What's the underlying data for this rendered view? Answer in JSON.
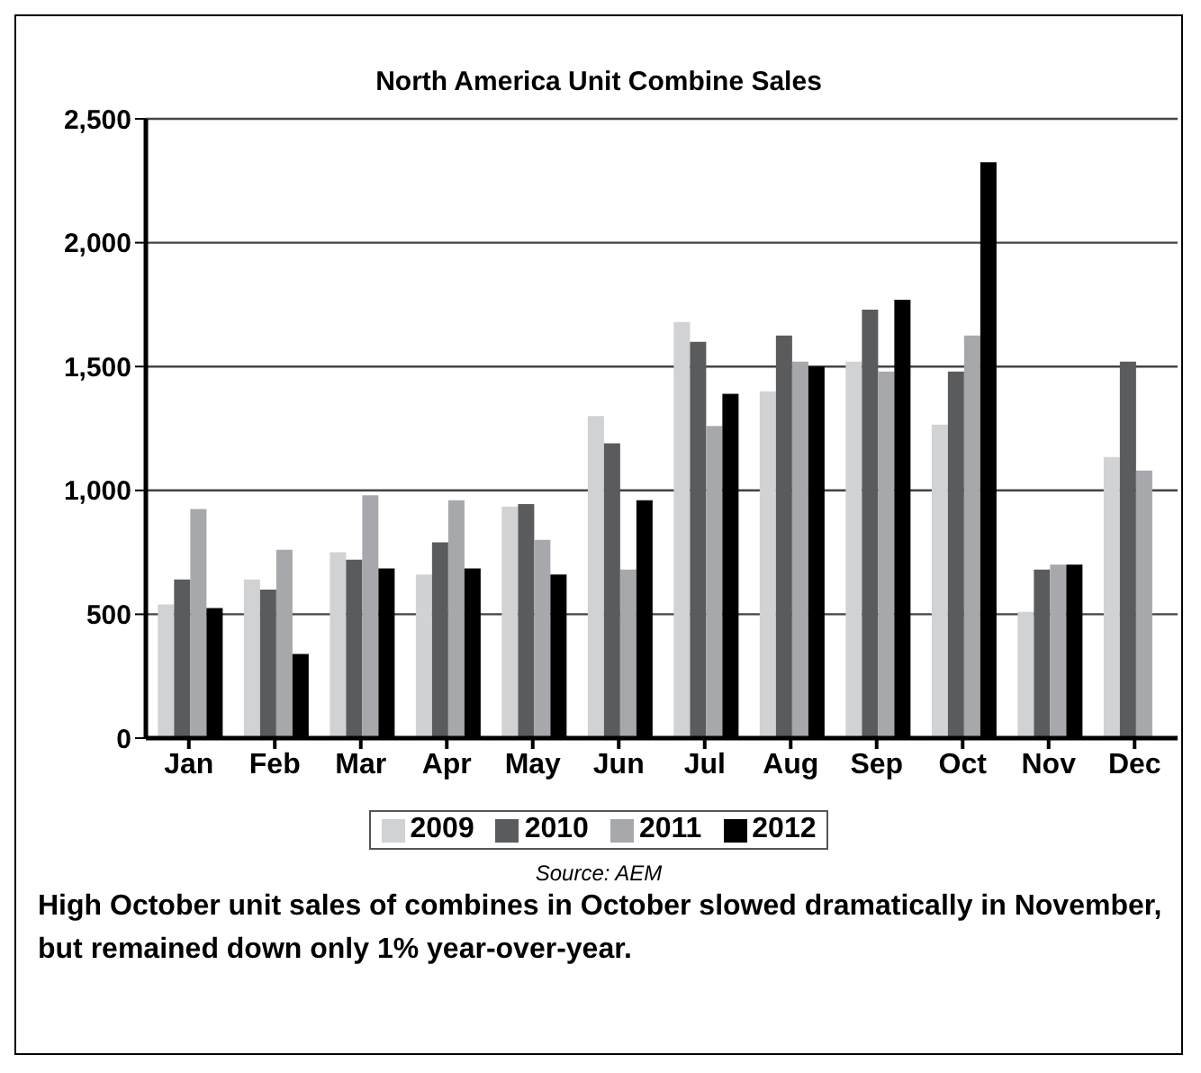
{
  "chart_data": {
    "type": "bar",
    "title": "North America Unit Combine Sales",
    "categories": [
      "Jan",
      "Feb",
      "Mar",
      "Apr",
      "May",
      "Jun",
      "Jul",
      "Aug",
      "Sep",
      "Oct",
      "Nov",
      "Dec"
    ],
    "series": [
      {
        "name": "2009",
        "color": "#d1d2d4",
        "values": [
          540,
          640,
          750,
          660,
          935,
          1300,
          1680,
          1400,
          1520,
          1265,
          510,
          1135
        ]
      },
      {
        "name": "2010",
        "color": "#5a5b5d",
        "values": [
          640,
          600,
          720,
          790,
          945,
          1190,
          1600,
          1625,
          1730,
          1480,
          680,
          1520
        ]
      },
      {
        "name": "2011",
        "color": "#a7a8ab",
        "values": [
          925,
          760,
          980,
          960,
          800,
          680,
          1260,
          1520,
          1480,
          1625,
          700,
          1080
        ]
      },
      {
        "name": "2012",
        "color": "#000000",
        "values": [
          525,
          340,
          685,
          685,
          660,
          960,
          1390,
          1500,
          1770,
          2325,
          700,
          null
        ]
      }
    ],
    "ylim": [
      0,
      2500
    ],
    "yticks": [
      {
        "value": 0,
        "label": "0"
      },
      {
        "value": 500,
        "label": "500"
      },
      {
        "value": 1000,
        "label": "1,000"
      },
      {
        "value": 1500,
        "label": "1,500"
      },
      {
        "value": 2000,
        "label": "2,000"
      },
      {
        "value": 2500,
        "label": "2,500"
      }
    ],
    "grid": "y",
    "legend": "bottom",
    "annotations": [
      "Source: AEM",
      "High October unit sales of combines in October slowed dramatically in November, but remained down only 1% year-over-year."
    ]
  }
}
